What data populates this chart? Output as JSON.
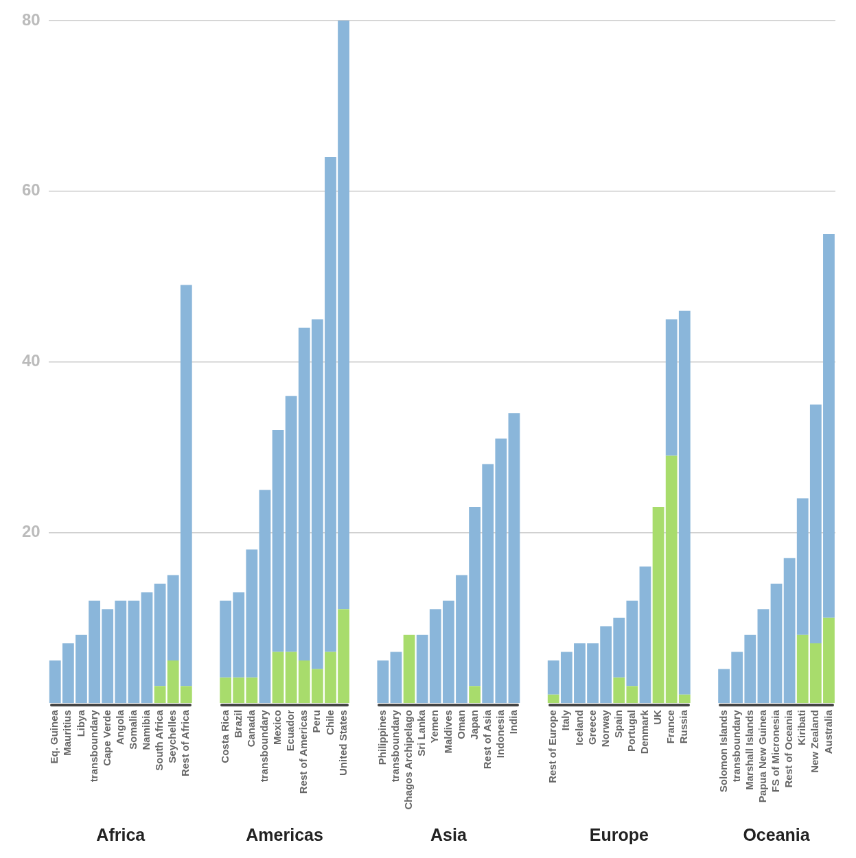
{
  "chart_data": {
    "type": "bar",
    "stacked": true,
    "categories": [
      "Eq. Guinea",
      "Mauritius",
      "Libya",
      "transboundary",
      "Cape Verde",
      "Angola",
      "Somalia",
      "Namibia",
      "South Africa",
      "Seychelles",
      "Rest of Africa",
      null,
      null,
      "Costa Rica",
      "Brazil",
      "Canada",
      "transboundary",
      "Mexico",
      "Ecuador",
      "Rest of Americas",
      "Peru",
      "Chile",
      "United States",
      null,
      null,
      "Philippines",
      "transboundary",
      "Chagos Archipelago",
      "Sri Lanka",
      "Yemen",
      "Maldives",
      "Oman",
      "Japan",
      "Rest of Asia",
      "Indonesia",
      "India",
      null,
      null,
      "Rest of Europe",
      "Italy",
      "Iceland",
      "Greece",
      "Norway",
      "Spain",
      "Portugal",
      "Denmark",
      "UK",
      "France",
      "Russia",
      null,
      null,
      "Solomon Islands",
      "transboundary",
      "Marshall Islands",
      "Papua New Guinea",
      "FS of Micronesia",
      "Rest of Oceania",
      "Kiribati",
      "New Zealand",
      "Australia"
    ],
    "series": [
      {
        "color": "#a8dc6c",
        "values": [
          0,
          0,
          0,
          0,
          0,
          0,
          0,
          0,
          2,
          5,
          2,
          null,
          null,
          3,
          3,
          3,
          0,
          6,
          6,
          5,
          4,
          6,
          11,
          null,
          null,
          0,
          0,
          8,
          0,
          0,
          0,
          0,
          2,
          0,
          0,
          0,
          null,
          null,
          1,
          0,
          0,
          0,
          0,
          3,
          2,
          0,
          23,
          29,
          1,
          null,
          null,
          0,
          0,
          0,
          0,
          0,
          0,
          8,
          7,
          10
        ]
      },
      {
        "color": "#8ab6da",
        "values": [
          5,
          7,
          8,
          12,
          11,
          12,
          12,
          13,
          12,
          10,
          47,
          null,
          null,
          9,
          10,
          15,
          25,
          26,
          30,
          39,
          41,
          58,
          69,
          null,
          null,
          5,
          6,
          0,
          8,
          11,
          12,
          15,
          21,
          28,
          31,
          34,
          null,
          null,
          4,
          6,
          7,
          7,
          9,
          7,
          10,
          16,
          0,
          16,
          45,
          null,
          null,
          4,
          6,
          8,
          11,
          14,
          17,
          16,
          28,
          45
        ]
      }
    ],
    "ylim": [
      0,
      80
    ],
    "yticks": [
      20,
      40,
      60,
      80
    ],
    "grid": "y",
    "annotations": [
      "Africa",
      "Americas",
      "Asia",
      "Europe",
      "Oceania"
    ]
  }
}
